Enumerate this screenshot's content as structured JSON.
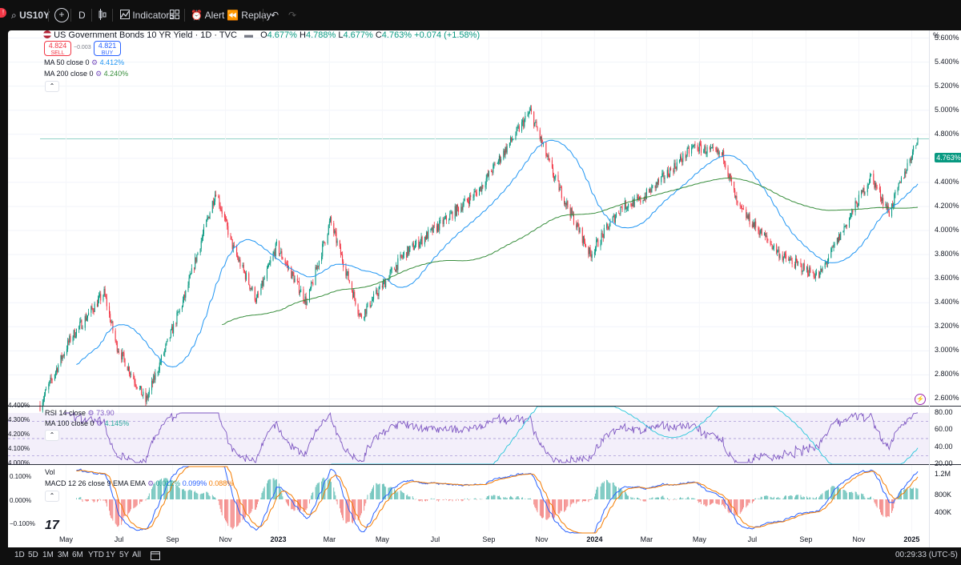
{
  "topbar": {
    "alert_badge": "!",
    "symbol": "US10Y",
    "interval": "D",
    "indicators": "Indicators",
    "alert": "Alert",
    "replay": "Replay"
  },
  "legend": {
    "title": "US Government Bonds 10 YR Yield · 1D · TVC",
    "ohlc": {
      "o_label": "O",
      "o": "4.677%",
      "h_label": "H",
      "h": "4.788%",
      "l_label": "L",
      "l": "4.677%",
      "c_label": "C",
      "c": "4.763%",
      "change": "+0.074 (+1.58%)"
    },
    "sell_price": "4.824",
    "sell_label": "SELL",
    "spread": "−0.003",
    "buy_price": "4.821",
    "buy_label": "BUY",
    "ma50_label": "MA 50 close 0",
    "ma50_value": "4.412%",
    "ma200_label": "MA 200 close 0",
    "ma200_value": "4.240%"
  },
  "price_axis": {
    "unit": "%",
    "ticks": [
      "5.600%",
      "5.400%",
      "5.200%",
      "5.000%",
      "4.800%",
      "4.600%",
      "4.400%",
      "4.200%",
      "4.000%",
      "3.800%",
      "3.600%",
      "3.400%",
      "3.200%",
      "3.000%",
      "2.800%",
      "2.600%"
    ],
    "last_price": "4.763%"
  },
  "rsi_pane": {
    "label": "RSI 14 close",
    "value": "73.90",
    "ma_label": "MA 100 close 0",
    "ma_value": "4.145%",
    "left_ticks": [
      "4.400%",
      "4.300%",
      "4.200%",
      "4.100%",
      "4.000%"
    ],
    "right_ticks": [
      "80.00",
      "60.00",
      "40.00",
      "20.00"
    ]
  },
  "macd_pane": {
    "vol_label": "Vol",
    "label": "MACD 12 26 close 9 EMA EMA",
    "hist": "0.012%",
    "macd": "0.099%",
    "signal": "0.088%",
    "left_ticks": [
      "0.100%",
      "0.000%",
      "−0.100%"
    ],
    "right_ticks": [
      "1.2M",
      "800K",
      "400K"
    ]
  },
  "time_axis": [
    "May",
    "Jul",
    "Sep",
    "Nov",
    "2023",
    "Mar",
    "May",
    "Jul",
    "Sep",
    "Nov",
    "2024",
    "Mar",
    "May",
    "Jul",
    "Sep",
    "Nov",
    "2025"
  ],
  "bottombar": {
    "ranges": [
      "1D",
      "5D",
      "1M",
      "3M",
      "6M",
      "YTD",
      "1Y",
      "5Y",
      "All"
    ],
    "clock": "00:29:33 (UTC-5)"
  },
  "logo_text": "17",
  "colors": {
    "up": "#089981",
    "down": "#f23645",
    "ma50": "#2196f3",
    "ma200": "#388e3c",
    "rsi": "#7e57c2",
    "macd": "#2962ff",
    "signal": "#f57c00"
  },
  "chart_data": {
    "type": "candlestick",
    "symbol": "US10Y",
    "ylim": [
      2.55,
      5.65
    ],
    "keypoints": [
      {
        "x": "2022-04-01",
        "close": 2.55
      },
      {
        "x": "2022-05-06",
        "close": 3.1
      },
      {
        "x": "2022-06-14",
        "close": 3.48
      },
      {
        "x": "2022-06-28",
        "close": 3.05
      },
      {
        "x": "2022-08-01",
        "close": 2.58
      },
      {
        "x": "2022-09-15",
        "close": 3.45
      },
      {
        "x": "2022-10-21",
        "close": 4.33
      },
      {
        "x": "2022-11-10",
        "close": 3.85
      },
      {
        "x": "2022-12-07",
        "close": 3.42
      },
      {
        "x": "2022-12-30",
        "close": 3.87
      },
      {
        "x": "2023-02-03",
        "close": 3.4
      },
      {
        "x": "2023-03-02",
        "close": 4.08
      },
      {
        "x": "2023-04-06",
        "close": 3.28
      },
      {
        "x": "2023-05-26",
        "close": 3.8
      },
      {
        "x": "2023-07-07",
        "close": 4.05
      },
      {
        "x": "2023-08-21",
        "close": 4.34
      },
      {
        "x": "2023-10-19",
        "close": 4.99
      },
      {
        "x": "2023-11-15",
        "close": 4.45
      },
      {
        "x": "2023-12-27",
        "close": 3.8
      },
      {
        "x": "2024-02-01",
        "close": 4.2
      },
      {
        "x": "2024-02-23",
        "close": 4.25
      },
      {
        "x": "2024-04-25",
        "close": 4.7
      },
      {
        "x": "2024-05-29",
        "close": 4.62
      },
      {
        "x": "2024-06-14",
        "close": 4.2
      },
      {
        "x": "2024-08-05",
        "close": 3.78
      },
      {
        "x": "2024-09-16",
        "close": 3.62
      },
      {
        "x": "2024-11-15",
        "close": 4.45
      },
      {
        "x": "2024-12-06",
        "close": 4.15
      },
      {
        "x": "2025-01-08",
        "close": 4.763
      }
    ],
    "ma50_end": 4.412,
    "ma200_end": 4.24,
    "rsi_last": 73.9
  }
}
